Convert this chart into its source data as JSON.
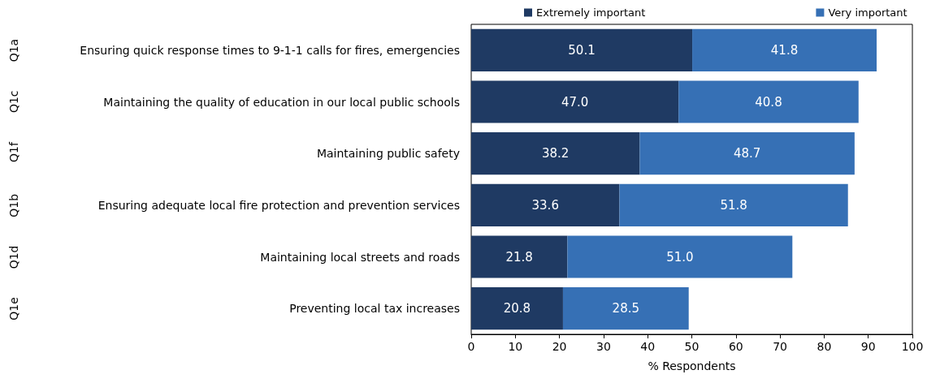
{
  "chart_data": {
    "type": "bar",
    "orientation": "horizontal",
    "stacked": true,
    "categories": [
      "Ensuring quick response times to 9-1-1 calls for fires, emergencies",
      "Maintaining the quality of education in our local public schools",
      "Maintaining public safety",
      "Ensuring adequate local fire protection and prevention services",
      "Maintaining local streets and roads",
      "Preventing local tax increases"
    ],
    "series": [
      {
        "name": "Extremely important",
        "color": "#1f3a63",
        "values": [
          50.1,
          47.0,
          38.2,
          33.6,
          21.8,
          20.8
        ]
      },
      {
        "name": "Very important",
        "color": "#3670b5",
        "values": [
          41.8,
          40.8,
          48.7,
          51.8,
          51.0,
          28.5
        ]
      }
    ],
    "xlabel": "% Respondents",
    "xlim": [
      0,
      100
    ],
    "xticks": [
      0,
      10,
      20,
      30,
      40,
      50,
      60,
      70,
      80,
      90,
      100
    ],
    "value_labels": [
      [
        "50.1",
        "47.0",
        "38.2",
        "33.6",
        "21.8",
        "20.8"
      ],
      [
        "41.8",
        "40.8",
        "48.7",
        "51.8",
        "51.0",
        "28.5"
      ]
    ],
    "annotations": [
      "Q1a",
      "Q1c",
      "Q1f",
      "Q1b",
      "Q1d",
      "Q1e"
    ],
    "grid": false,
    "legend": "top"
  }
}
